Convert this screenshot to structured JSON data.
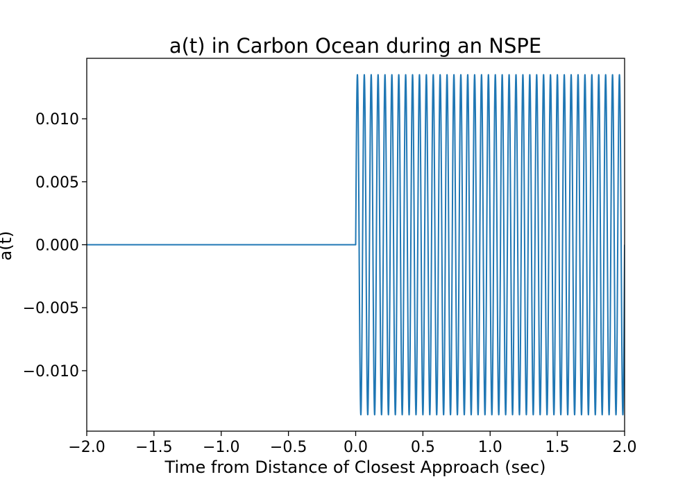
{
  "chart_data": {
    "type": "line",
    "title": "a(t) in Carbon Ocean during an NSPE",
    "xlabel": "Time from Distance of Closest Approach (sec)",
    "ylabel": "a(t)",
    "xlim": [
      -2.0,
      2.0
    ],
    "ylim": [
      -0.0148,
      0.0148
    ],
    "xticks": [
      -2.0,
      -1.5,
      -1.0,
      -0.5,
      0.0,
      0.5,
      1.0,
      1.5,
      2.0
    ],
    "xtick_labels": [
      "−2.0",
      "−1.5",
      "−1.0",
      "−0.5",
      "0.0",
      "0.5",
      "1.0",
      "1.5",
      "2.0"
    ],
    "yticks": [
      0.01,
      0.005,
      0.0,
      -0.005,
      -0.01
    ],
    "ytick_labels": [
      "0.010",
      "0.005",
      "0.000",
      "−0.005",
      "−0.010"
    ],
    "grid": false,
    "legend": "none",
    "series": [
      {
        "color": "#1f77b4",
        "onset_time": 0.0,
        "amplitude": 0.0135,
        "cycles_per_second": 19.5
      }
    ]
  }
}
